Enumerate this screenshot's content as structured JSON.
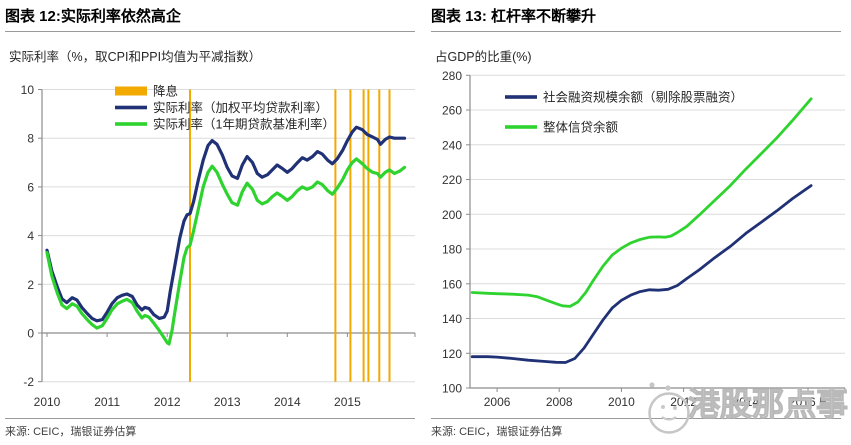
{
  "watermark": {
    "text": "港股那点事"
  },
  "chart_data": [
    {
      "type": "line",
      "title": "图表 12:实际利率依然高企",
      "axis_title": "实际利率（%，取CPI和PPI均值为平减指数）",
      "source": "来源: CEIC，瑞银证券估算",
      "xlim": [
        2009.917,
        2016.125
      ],
      "ylim": [
        -2,
        10
      ],
      "baseline": 0,
      "grid": "horizontal",
      "y_ticks": [
        -2,
        0,
        2,
        4,
        6,
        8,
        10
      ],
      "x_ticks": [
        {
          "t": 2010,
          "label": "2010"
        },
        {
          "t": 2011,
          "label": "2011"
        },
        {
          "t": 2012,
          "label": "2012"
        },
        {
          "t": 2013,
          "label": "2013"
        },
        {
          "t": 2014,
          "label": "2014"
        },
        {
          "t": 2015,
          "label": "2015"
        }
      ],
      "legend": [
        {
          "swatch": "bar",
          "color": "#F2A900",
          "label": "降息"
        },
        {
          "swatch": "line",
          "color": "#203175",
          "label": "实际利率（加权平均贷款利率）"
        },
        {
          "swatch": "line",
          "color": "#2fd32f",
          "label": "实际利率（1年期贷款基准利率）"
        }
      ],
      "vlines": {
        "color": "#F2A900",
        "x": [
          2012.38,
          2014.8,
          2015.05,
          2015.27,
          2015.35,
          2015.53,
          2015.7
        ]
      },
      "series": [
        {
          "name": "实际利率（加权平均贷款利率）",
          "color": "#203175",
          "width": 3.2,
          "points": [
            [
              2010.0,
              3.4
            ],
            [
              2010.08,
              2.55
            ],
            [
              2010.17,
              1.9
            ],
            [
              2010.25,
              1.4
            ],
            [
              2010.33,
              1.25
            ],
            [
              2010.42,
              1.45
            ],
            [
              2010.5,
              1.35
            ],
            [
              2010.58,
              1.05
            ],
            [
              2010.67,
              0.8
            ],
            [
              2010.75,
              0.6
            ],
            [
              2010.83,
              0.5
            ],
            [
              2010.92,
              0.55
            ],
            [
              2011.0,
              0.85
            ],
            [
              2011.08,
              1.2
            ],
            [
              2011.17,
              1.45
            ],
            [
              2011.25,
              1.55
            ],
            [
              2011.33,
              1.6
            ],
            [
              2011.42,
              1.5
            ],
            [
              2011.5,
              1.15
            ],
            [
              2011.58,
              0.95
            ],
            [
              2011.63,
              1.05
            ],
            [
              2011.7,
              1.0
            ],
            [
              2011.78,
              0.75
            ],
            [
              2011.87,
              0.6
            ],
            [
              2011.95,
              0.65
            ],
            [
              2012.0,
              0.9
            ],
            [
              2012.05,
              1.7
            ],
            [
              2012.13,
              2.8
            ],
            [
              2012.21,
              3.9
            ],
            [
              2012.28,
              4.6
            ],
            [
              2012.33,
              4.85
            ],
            [
              2012.38,
              4.9
            ],
            [
              2012.44,
              5.4
            ],
            [
              2012.52,
              6.3
            ],
            [
              2012.6,
              7.1
            ],
            [
              2012.68,
              7.7
            ],
            [
              2012.75,
              7.9
            ],
            [
              2012.83,
              7.75
            ],
            [
              2012.92,
              7.3
            ],
            [
              2013.0,
              6.8
            ],
            [
              2013.08,
              6.45
            ],
            [
              2013.17,
              6.35
            ],
            [
              2013.25,
              6.9
            ],
            [
              2013.33,
              7.25
            ],
            [
              2013.42,
              7.0
            ],
            [
              2013.5,
              6.55
            ],
            [
              2013.58,
              6.4
            ],
            [
              2013.67,
              6.5
            ],
            [
              2013.75,
              6.7
            ],
            [
              2013.83,
              6.9
            ],
            [
              2013.92,
              6.75
            ],
            [
              2014.0,
              6.6
            ],
            [
              2014.08,
              6.75
            ],
            [
              2014.17,
              7.0
            ],
            [
              2014.25,
              7.2
            ],
            [
              2014.33,
              7.1
            ],
            [
              2014.42,
              7.25
            ],
            [
              2014.5,
              7.45
            ],
            [
              2014.58,
              7.35
            ],
            [
              2014.67,
              7.1
            ],
            [
              2014.75,
              6.95
            ],
            [
              2014.83,
              7.15
            ],
            [
              2014.92,
              7.5
            ],
            [
              2015.0,
              7.9
            ],
            [
              2015.08,
              8.25
            ],
            [
              2015.15,
              8.45
            ],
            [
              2015.25,
              8.35
            ],
            [
              2015.33,
              8.15
            ],
            [
              2015.42,
              8.05
            ],
            [
              2015.5,
              7.95
            ],
            [
              2015.55,
              7.75
            ],
            [
              2015.63,
              7.95
            ],
            [
              2015.7,
              8.05
            ],
            [
              2015.78,
              8.0
            ],
            [
              2015.87,
              8.0
            ],
            [
              2015.95,
              8.0
            ]
          ]
        },
        {
          "name": "实际利率（1年期贷款基准利率）",
          "color": "#2fd32f",
          "width": 3.2,
          "points": [
            [
              2010.0,
              3.3
            ],
            [
              2010.08,
              2.35
            ],
            [
              2010.17,
              1.65
            ],
            [
              2010.25,
              1.15
            ],
            [
              2010.33,
              1.0
            ],
            [
              2010.42,
              1.2
            ],
            [
              2010.5,
              1.1
            ],
            [
              2010.58,
              0.8
            ],
            [
              2010.67,
              0.55
            ],
            [
              2010.75,
              0.35
            ],
            [
              2010.83,
              0.2
            ],
            [
              2010.92,
              0.3
            ],
            [
              2011.0,
              0.6
            ],
            [
              2011.08,
              0.95
            ],
            [
              2011.17,
              1.2
            ],
            [
              2011.25,
              1.3
            ],
            [
              2011.33,
              1.38
            ],
            [
              2011.42,
              1.25
            ],
            [
              2011.5,
              0.9
            ],
            [
              2011.58,
              0.62
            ],
            [
              2011.63,
              0.72
            ],
            [
              2011.7,
              0.65
            ],
            [
              2011.78,
              0.4
            ],
            [
              2011.87,
              0.1
            ],
            [
              2011.95,
              -0.2
            ],
            [
              2012.0,
              -0.4
            ],
            [
              2012.03,
              -0.45
            ],
            [
              2012.08,
              0.1
            ],
            [
              2012.13,
              0.9
            ],
            [
              2012.21,
              2.1
            ],
            [
              2012.28,
              3.1
            ],
            [
              2012.33,
              3.5
            ],
            [
              2012.38,
              3.6
            ],
            [
              2012.44,
              4.2
            ],
            [
              2012.52,
              5.1
            ],
            [
              2012.6,
              6.0
            ],
            [
              2012.68,
              6.6
            ],
            [
              2012.75,
              6.85
            ],
            [
              2012.83,
              6.6
            ],
            [
              2012.92,
              6.1
            ],
            [
              2013.0,
              5.7
            ],
            [
              2013.08,
              5.35
            ],
            [
              2013.17,
              5.25
            ],
            [
              2013.25,
              5.8
            ],
            [
              2013.33,
              6.15
            ],
            [
              2013.42,
              5.9
            ],
            [
              2013.5,
              5.45
            ],
            [
              2013.58,
              5.3
            ],
            [
              2013.67,
              5.4
            ],
            [
              2013.75,
              5.6
            ],
            [
              2013.83,
              5.75
            ],
            [
              2013.92,
              5.6
            ],
            [
              2014.0,
              5.45
            ],
            [
              2014.08,
              5.6
            ],
            [
              2014.17,
              5.85
            ],
            [
              2014.25,
              6.0
            ],
            [
              2014.33,
              5.9
            ],
            [
              2014.42,
              6.0
            ],
            [
              2014.5,
              6.2
            ],
            [
              2014.58,
              6.1
            ],
            [
              2014.67,
              5.85
            ],
            [
              2014.75,
              5.7
            ],
            [
              2014.83,
              5.95
            ],
            [
              2014.92,
              6.3
            ],
            [
              2015.0,
              6.7
            ],
            [
              2015.08,
              7.0
            ],
            [
              2015.15,
              7.15
            ],
            [
              2015.25,
              6.95
            ],
            [
              2015.33,
              6.75
            ],
            [
              2015.42,
              6.6
            ],
            [
              2015.5,
              6.55
            ],
            [
              2015.55,
              6.4
            ],
            [
              2015.63,
              6.6
            ],
            [
              2015.7,
              6.7
            ],
            [
              2015.78,
              6.55
            ],
            [
              2015.87,
              6.65
            ],
            [
              2015.95,
              6.8
            ]
          ]
        }
      ]
    },
    {
      "type": "line",
      "title": "图表 13: 杠杆率不断攀升",
      "axis_title": "占GDP的比重(%)",
      "source": "来源: CEIC，瑞银证券估算",
      "xlim": [
        2005.13,
        2017.19
      ],
      "ylim": [
        100,
        280
      ],
      "baseline": 100,
      "grid": "horizontal",
      "y_ticks": [
        100,
        120,
        140,
        160,
        180,
        200,
        220,
        240,
        260,
        280
      ],
      "x_ticks": [
        {
          "t": 2006,
          "label": "2006"
        },
        {
          "t": 2008,
          "label": "2008"
        },
        {
          "t": 2010,
          "label": "2010"
        },
        {
          "t": 2012,
          "label": "2012"
        },
        {
          "t": 2014,
          "label": "2014"
        },
        {
          "t": 2016,
          "label": "2016 E"
        }
      ],
      "legend": [
        {
          "swatch": "line",
          "color": "#203175",
          "label": "社会融资规模余额（剔除股票融资）"
        },
        {
          "swatch": "line",
          "color": "#2fd32f",
          "label": "整体信贷余额"
        }
      ],
      "series": [
        {
          "name": "社会融资规模余额（剔除股票融资）",
          "color": "#203175",
          "width": 2.8,
          "points": [
            [
              2005.2,
              118
            ],
            [
              2005.7,
              118
            ],
            [
              2006.0,
              117.8
            ],
            [
              2006.5,
              117
            ],
            [
              2007.0,
              116
            ],
            [
              2007.5,
              115.3
            ],
            [
              2007.9,
              114.8
            ],
            [
              2008.2,
              114.7
            ],
            [
              2008.5,
              117
            ],
            [
              2008.8,
              123
            ],
            [
              2009.1,
              131
            ],
            [
              2009.4,
              139
            ],
            [
              2009.7,
              146
            ],
            [
              2010.0,
              150.5
            ],
            [
              2010.3,
              153.5
            ],
            [
              2010.6,
              155.5
            ],
            [
              2010.9,
              156.5
            ],
            [
              2011.2,
              156.3
            ],
            [
              2011.5,
              156.8
            ],
            [
              2011.8,
              159
            ],
            [
              2012.1,
              163
            ],
            [
              2012.5,
              168
            ],
            [
              2013.0,
              175
            ],
            [
              2013.5,
              181.5
            ],
            [
              2014.0,
              189
            ],
            [
              2014.5,
              195.5
            ],
            [
              2015.0,
              202
            ],
            [
              2015.5,
              209
            ],
            [
              2016.1,
              216.5
            ]
          ]
        },
        {
          "name": "整体信贷余额",
          "color": "#2fd32f",
          "width": 2.8,
          "points": [
            [
              2005.2,
              155
            ],
            [
              2005.7,
              154.5
            ],
            [
              2006.0,
              154.3
            ],
            [
              2006.5,
              154
            ],
            [
              2007.0,
              153.5
            ],
            [
              2007.3,
              152.5
            ],
            [
              2007.6,
              150.5
            ],
            [
              2007.9,
              148.5
            ],
            [
              2008.1,
              147.3
            ],
            [
              2008.35,
              147
            ],
            [
              2008.6,
              149.5
            ],
            [
              2008.85,
              155
            ],
            [
              2009.1,
              162
            ],
            [
              2009.4,
              170
            ],
            [
              2009.7,
              176.5
            ],
            [
              2010.0,
              180.5
            ],
            [
              2010.3,
              183.5
            ],
            [
              2010.6,
              185.5
            ],
            [
              2010.9,
              186.8
            ],
            [
              2011.2,
              187
            ],
            [
              2011.4,
              186.8
            ],
            [
              2011.6,
              187.5
            ],
            [
              2011.8,
              189.5
            ],
            [
              2012.1,
              193
            ],
            [
              2012.5,
              199.5
            ],
            [
              2013.0,
              208
            ],
            [
              2013.5,
              216.5
            ],
            [
              2014.0,
              226
            ],
            [
              2014.5,
              235
            ],
            [
              2015.0,
              244
            ],
            [
              2015.5,
              254
            ],
            [
              2016.1,
              266.5
            ]
          ]
        }
      ]
    }
  ]
}
